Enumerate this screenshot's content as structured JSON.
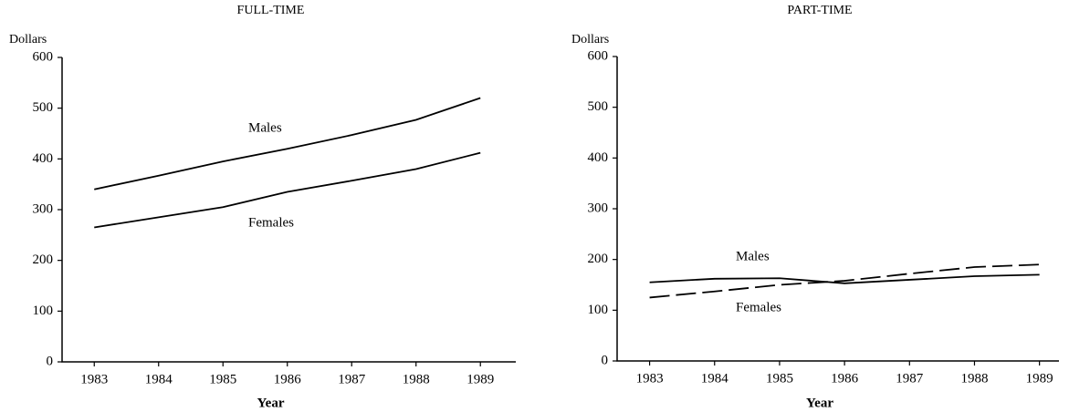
{
  "chart_data": [
    {
      "type": "line",
      "title": "FULL-TIME",
      "y_label": "Dollars",
      "x_label": "Year",
      "x": [
        1983,
        1984,
        1985,
        1986,
        1987,
        1988,
        1989
      ],
      "xlim": [
        1982.5,
        1989.55
      ],
      "xticks": [
        1983,
        1984,
        1985,
        1986,
        1987,
        1988,
        1989
      ],
      "ylim": [
        0,
        600
      ],
      "yticks": [
        0,
        100,
        200,
        300,
        400,
        500,
        600
      ],
      "series": [
        {
          "name": "Males",
          "color": "#000000",
          "dashed": false,
          "values": [
            340,
            367,
            395,
            420,
            447,
            477,
            520
          ]
        },
        {
          "name": "Females",
          "color": "#000000",
          "dashed": false,
          "values": [
            265,
            285,
            305,
            335,
            357,
            380,
            412
          ]
        }
      ]
    },
    {
      "type": "line",
      "title": "PART-TIME",
      "y_label": "Dollars",
      "x_label": "Year",
      "x": [
        1983,
        1984,
        1985,
        1986,
        1987,
        1988,
        1989
      ],
      "xlim": [
        1982.5,
        1989.3
      ],
      "xticks": [
        1983,
        1984,
        1985,
        1986,
        1987,
        1988,
        1989
      ],
      "ylim": [
        0,
        600
      ],
      "yticks": [
        0,
        100,
        200,
        300,
        400,
        500,
        600
      ],
      "series": [
        {
          "name": "Males",
          "color": "#000000",
          "dashed": false,
          "values": [
            155,
            162,
            163,
            153,
            160,
            167,
            170
          ]
        },
        {
          "name": "Females",
          "color": "#000000",
          "dashed": true,
          "values": [
            125,
            137,
            150,
            158,
            172,
            185,
            190
          ]
        }
      ]
    }
  ]
}
